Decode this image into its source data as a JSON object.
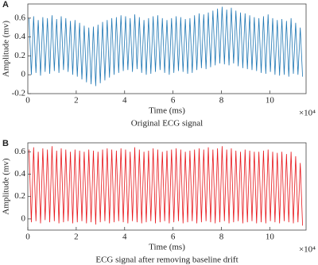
{
  "chart_data": [
    {
      "type": "line",
      "panel_label": "A",
      "caption": "Original ECG signal",
      "x_label": "Time (ms)",
      "y_label": "Amplitude (mv)",
      "x_multiplier": "×10⁴",
      "xlim": [
        0,
        115000
      ],
      "ylim": [
        -0.2,
        0.75
      ],
      "xticks": [
        {
          "value": 0,
          "label": "0"
        },
        {
          "value": 20000,
          "label": "2"
        },
        {
          "value": 40000,
          "label": "4"
        },
        {
          "value": 60000,
          "label": "6"
        },
        {
          "value": 80000,
          "label": "8"
        },
        {
          "value": 100000,
          "label": "10"
        }
      ],
      "yticks": [
        -0.2,
        0,
        0.2,
        0.4,
        0.6
      ],
      "x": [
        500,
        1450,
        2400,
        3350,
        4300,
        5250,
        6200,
        7150,
        8100,
        9050,
        10000,
        10950,
        11900,
        12850,
        13800,
        14750,
        15700,
        16650,
        17600,
        18550,
        19500,
        20450,
        21400,
        22350,
        23300,
        24250,
        25200,
        26150,
        27100,
        28050,
        29000,
        29950,
        30900,
        31850,
        32800,
        33750,
        34700,
        35650,
        36600,
        37550,
        38500,
        39450,
        40400,
        41350,
        42300,
        43250,
        44200,
        45150,
        46100,
        47050,
        48000,
        48950,
        49900,
        50850,
        51800,
        52750,
        53700,
        54650,
        55600,
        56550,
        57500,
        58450,
        59400,
        60350,
        61300,
        62250,
        63200,
        64150,
        65100,
        66050,
        67000,
        67950,
        68900,
        69850,
        70800,
        71750,
        72700,
        73650,
        74600,
        75550,
        76500,
        77450,
        78400,
        79350,
        80300,
        81250,
        82200,
        83150,
        84100,
        85050,
        86000,
        86950,
        87900,
        88850,
        89800,
        90750,
        91700,
        92650,
        93600,
        94550,
        95500,
        96450,
        97400,
        98350,
        99300,
        100250,
        101200,
        102150,
        103100,
        104050,
        105000,
        105950,
        106900,
        107850,
        108800,
        109750,
        110700,
        111650,
        112600,
        113550
      ],
      "series": [
        {
          "color": "#1f77b4",
          "values": [
            0.6,
            0.0,
            0.62,
            0.02,
            0.58,
            -0.01,
            0.61,
            0.03,
            0.6,
            0.01,
            0.63,
            0.04,
            0.59,
            0.02,
            0.62,
            0.05,
            0.6,
            0.03,
            0.57,
            0.0,
            0.58,
            -0.02,
            0.55,
            -0.05,
            0.52,
            -0.08,
            0.5,
            -0.1,
            0.51,
            -0.12,
            0.53,
            -0.09,
            0.56,
            -0.06,
            0.58,
            -0.03,
            0.6,
            0.0,
            0.61,
            0.02,
            0.63,
            0.04,
            0.62,
            0.05,
            0.6,
            0.03,
            0.64,
            0.06,
            0.61,
            0.02,
            0.58,
            0.0,
            0.6,
            0.01,
            0.62,
            0.03,
            0.63,
            0.05,
            0.6,
            0.02,
            0.58,
            0.0,
            0.6,
            0.02,
            0.62,
            0.04,
            0.61,
            0.03,
            0.59,
            0.01,
            0.6,
            0.02,
            0.63,
            0.05,
            0.65,
            0.07,
            0.64,
            0.06,
            0.66,
            0.08,
            0.68,
            0.1,
            0.7,
            0.12,
            0.72,
            0.11,
            0.69,
            0.1,
            0.71,
            0.12,
            0.68,
            0.09,
            0.66,
            0.07,
            0.65,
            0.06,
            0.63,
            0.05,
            0.61,
            0.04,
            0.6,
            0.02,
            0.62,
            0.01,
            0.64,
            0.03,
            0.6,
            0.0,
            0.58,
            -0.01,
            0.59,
            0.0,
            0.57,
            -0.02,
            0.6,
            0.01,
            0.55,
            0.0,
            0.5,
            -0.02
          ]
        }
      ]
    },
    {
      "type": "line",
      "panel_label": "B",
      "caption": "ECG signal after removing baseline drift",
      "x_label": "Time (ms)",
      "y_label": "Amplitude (mv)",
      "x_multiplier": "×10⁴",
      "xlim": [
        0,
        115000
      ],
      "ylim": [
        -0.1,
        0.68
      ],
      "xticks": [
        {
          "value": 0,
          "label": "0"
        },
        {
          "value": 20000,
          "label": "2"
        },
        {
          "value": 40000,
          "label": "4"
        },
        {
          "value": 60000,
          "label": "6"
        },
        {
          "value": 80000,
          "label": "8"
        },
        {
          "value": 100000,
          "label": "10"
        }
      ],
      "yticks": [
        0,
        0.2,
        0.4,
        0.6
      ],
      "x": [
        500,
        1450,
        2400,
        3350,
        4300,
        5250,
        6200,
        7150,
        8100,
        9050,
        10000,
        10950,
        11900,
        12850,
        13800,
        14750,
        15700,
        16650,
        17600,
        18550,
        19500,
        20450,
        21400,
        22350,
        23300,
        24250,
        25200,
        26150,
        27100,
        28050,
        29000,
        29950,
        30900,
        31850,
        32800,
        33750,
        34700,
        35650,
        36600,
        37550,
        38500,
        39450,
        40400,
        41350,
        42300,
        43250,
        44200,
        45150,
        46100,
        47050,
        48000,
        48950,
        49900,
        50850,
        51800,
        52750,
        53700,
        54650,
        55600,
        56550,
        57500,
        58450,
        59400,
        60350,
        61300,
        62250,
        63200,
        64150,
        65100,
        66050,
        67000,
        67950,
        68900,
        69850,
        70800,
        71750,
        72700,
        73650,
        74600,
        75550,
        76500,
        77450,
        78400,
        79350,
        80300,
        81250,
        82200,
        83150,
        84100,
        85050,
        86000,
        86950,
        87900,
        88850,
        89800,
        90750,
        91700,
        92650,
        93600,
        94550,
        95500,
        96450,
        97400,
        98350,
        99300,
        100250,
        101200,
        102150,
        103100,
        104050,
        105000,
        105950,
        106900,
        107850,
        108800,
        109750,
        110700,
        111650,
        112600,
        113550
      ],
      "series": [
        {
          "color": "#e8161b",
          "values": [
            0.62,
            -0.03,
            0.64,
            -0.02,
            0.6,
            -0.04,
            0.63,
            -0.01,
            0.62,
            -0.03,
            0.65,
            -0.02,
            0.61,
            -0.04,
            0.63,
            -0.03,
            0.62,
            -0.02,
            0.6,
            -0.04,
            0.62,
            -0.03,
            0.61,
            -0.02,
            0.6,
            -0.04,
            0.62,
            -0.03,
            0.61,
            -0.05,
            0.6,
            -0.03,
            0.62,
            -0.02,
            0.63,
            -0.04,
            0.62,
            -0.03,
            0.61,
            -0.02,
            0.63,
            -0.03,
            0.62,
            -0.04,
            0.6,
            -0.02,
            0.64,
            -0.03,
            0.62,
            -0.04,
            0.6,
            -0.03,
            0.61,
            -0.02,
            0.63,
            -0.04,
            0.62,
            -0.03,
            0.6,
            -0.02,
            0.61,
            -0.04,
            0.62,
            -0.03,
            0.63,
            -0.02,
            0.62,
            -0.04,
            0.6,
            -0.03,
            0.61,
            -0.02,
            0.62,
            -0.04,
            0.63,
            -0.03,
            0.62,
            -0.02,
            0.64,
            -0.03,
            0.62,
            -0.04,
            0.63,
            -0.03,
            0.65,
            -0.02,
            0.62,
            -0.04,
            0.63,
            -0.03,
            0.61,
            -0.02,
            0.6,
            -0.04,
            0.62,
            -0.03,
            0.61,
            -0.02,
            0.6,
            -0.04,
            0.6,
            -0.03,
            0.61,
            -0.04,
            0.62,
            -0.02,
            0.6,
            -0.03,
            0.59,
            -0.04,
            0.6,
            -0.02,
            0.58,
            -0.03,
            0.6,
            -0.04,
            0.56,
            -0.03,
            0.5,
            -0.06
          ]
        }
      ]
    }
  ]
}
